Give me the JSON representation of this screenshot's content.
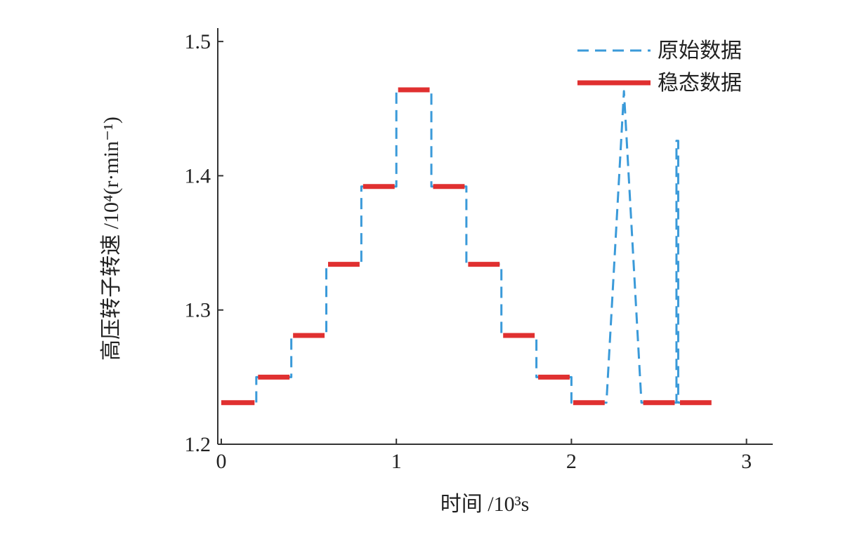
{
  "chart_data": {
    "type": "line",
    "xlabel": "时间 /10³s",
    "ylabel": "高压转子转速 /10⁴(r·min⁻¹)",
    "xlim": [
      -0.02,
      3.15
    ],
    "ylim": [
      1.2,
      1.51
    ],
    "xticks": [
      0,
      1,
      2,
      3
    ],
    "yticks": [
      1.2,
      1.3,
      1.4,
      1.5
    ],
    "legend": "upper right",
    "series": [
      {
        "name": "原始数据",
        "color": "#3a9ad9",
        "style": "dashed",
        "x": [
          0,
          0.2,
          0.2,
          0.4,
          0.4,
          0.6,
          0.6,
          0.8,
          0.8,
          1.0,
          1.0,
          1.2,
          1.2,
          1.4,
          1.4,
          1.6,
          1.6,
          1.8,
          1.8,
          2.0,
          2.0,
          2.2,
          2.3,
          2.4,
          2.6,
          2.6,
          2.61,
          2.61,
          2.8
        ],
        "values": [
          1.231,
          1.231,
          1.25,
          1.25,
          1.281,
          1.281,
          1.334,
          1.334,
          1.392,
          1.392,
          1.464,
          1.464,
          1.392,
          1.392,
          1.334,
          1.334,
          1.281,
          1.281,
          1.25,
          1.25,
          1.231,
          1.231,
          1.463,
          1.231,
          1.231,
          1.426,
          1.426,
          1.231,
          1.231
        ]
      },
      {
        "name": "稳态数据",
        "color": "#e03030",
        "style": "solid",
        "x": [
          0,
          0.19,
          null,
          0.21,
          0.39,
          null,
          0.41,
          0.59,
          null,
          0.61,
          0.79,
          null,
          0.81,
          0.99,
          null,
          1.01,
          1.19,
          null,
          1.21,
          1.39,
          null,
          1.41,
          1.59,
          null,
          1.61,
          1.79,
          null,
          1.81,
          1.99,
          null,
          2.01,
          2.19,
          null,
          2.41,
          2.59,
          null,
          2.62,
          2.8
        ],
        "values": [
          1.231,
          1.231,
          null,
          1.25,
          1.25,
          null,
          1.281,
          1.281,
          null,
          1.334,
          1.334,
          null,
          1.392,
          1.392,
          null,
          1.464,
          1.464,
          null,
          1.392,
          1.392,
          null,
          1.334,
          1.334,
          null,
          1.281,
          1.281,
          null,
          1.25,
          1.25,
          null,
          1.231,
          1.231,
          null,
          1.231,
          1.231,
          null,
          1.231,
          1.231
        ]
      }
    ]
  }
}
